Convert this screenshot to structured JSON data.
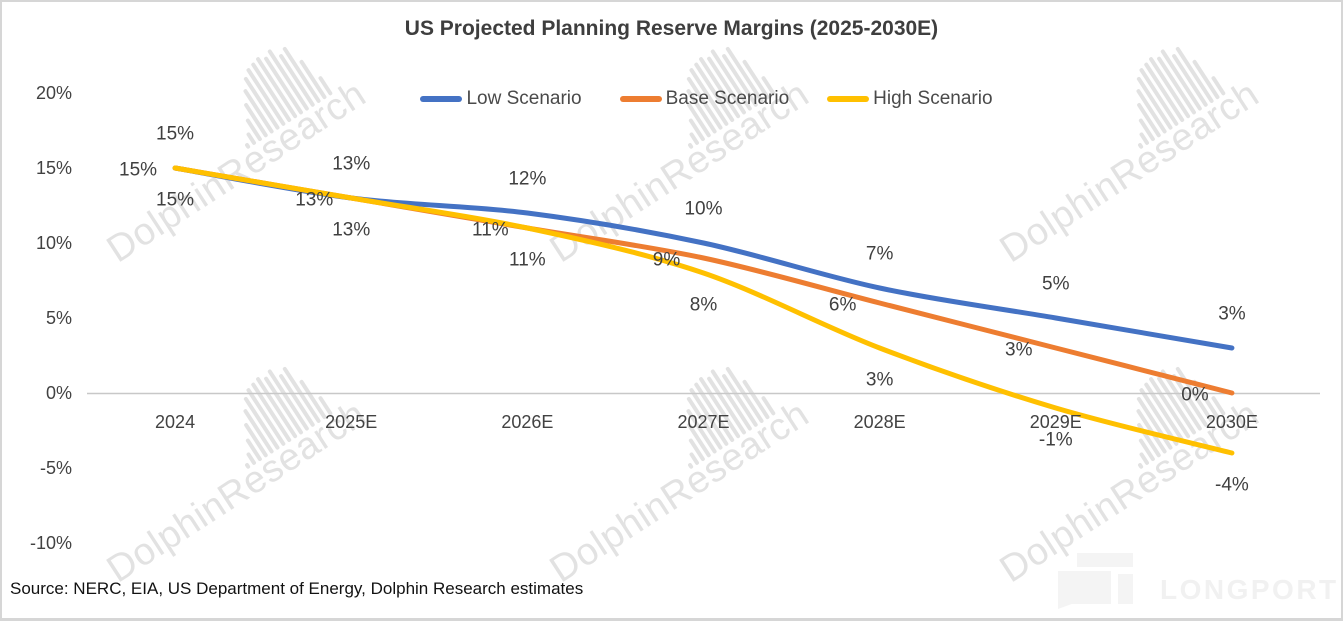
{
  "title": "US Projected Planning Reserve Margins (2025-2030E)",
  "source": "Source: NERC, EIA, US Department of Energy, Dolphin Research estimates",
  "watermark": {
    "text": "DolphinResearch"
  },
  "brand": {
    "wordmark": "LONGPORT"
  },
  "colors": {
    "low_scenario": "#4472C4",
    "base_scenario": "#ED7D31",
    "high_scenario": "#FFC000",
    "label_text": "#404040",
    "axis_text": "#424242",
    "axis_line": "#C8C8C8",
    "watermark": "#E2E2E2",
    "border": "#D6D6D6"
  },
  "chart_data": {
    "type": "line",
    "title": "US Projected Planning Reserve Margins (2025-2030E)",
    "categories": [
      "2024",
      "2025E",
      "2026E",
      "2027E",
      "2028E",
      "2029E",
      "2030E"
    ],
    "series": [
      {
        "name": "Low Scenario",
        "color": "#4472C4",
        "values": [
          15,
          13,
          12,
          10,
          7,
          5,
          3
        ],
        "point_labels": [
          "15%",
          "13%",
          "12%",
          "10%",
          "7%",
          "5%",
          "3%"
        ],
        "label_placement": "above"
      },
      {
        "name": "Base Scenario",
        "color": "#ED7D31",
        "values": [
          15,
          13,
          11,
          9,
          6,
          3,
          0
        ],
        "point_labels": [
          "15%",
          "13%",
          "11%",
          "9%",
          "6%",
          "3%",
          "0%"
        ],
        "label_placement": "left"
      },
      {
        "name": "High Scenario",
        "color": "#FFC000",
        "values": [
          15,
          13,
          11,
          8,
          3,
          -1,
          -4
        ],
        "point_labels": [
          "15%",
          "13%",
          "11%",
          "8%",
          "3%",
          "-1%",
          "-4%"
        ],
        "label_placement": "below"
      }
    ],
    "y_axis": {
      "tick_values": [
        20,
        15,
        10,
        5,
        0,
        -5,
        -10
      ],
      "tick_labels": [
        "20%",
        "15%",
        "10%",
        "5%",
        "0%",
        "-5%",
        "-10%"
      ],
      "ylim": [
        -10,
        20
      ]
    },
    "legend": {
      "position": "top",
      "entries": [
        "Low Scenario",
        "Base Scenario",
        "High Scenario"
      ]
    },
    "grid": false,
    "xlabel": "",
    "ylabel": ""
  }
}
